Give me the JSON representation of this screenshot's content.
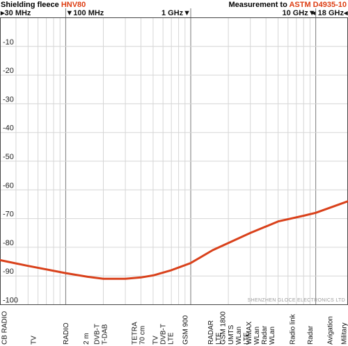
{
  "header": {
    "left_prefix": "Shielding fleece ",
    "left_accent": "HNV80",
    "right_prefix": "Measurement to ",
    "right_accent": "ASTM D4935-10"
  },
  "colors": {
    "accent": "#dd3d12",
    "curve": "#d9411b",
    "grid_minor": "#d6d6d6",
    "grid_major": "#7a7a7a",
    "axis": "#444444"
  },
  "watermark": "SHENZHEN GLOCE ELECTRONICS LTD",
  "chart_data": {
    "type": "line",
    "x_scale": "log",
    "xlim_mhz": [
      30,
      18000
    ],
    "ylim": [
      -100,
      0
    ],
    "grid": true,
    "yticks": [
      {
        "value": -10,
        "label": "-10"
      },
      {
        "value": -20,
        "label": "-20"
      },
      {
        "value": -30,
        "label": "-30"
      },
      {
        "value": -40,
        "label": "-40"
      },
      {
        "value": -50,
        "label": "-50"
      },
      {
        "value": -60,
        "label": "-60"
      },
      {
        "value": -70,
        "label": "-70"
      },
      {
        "value": -80,
        "label": "-80"
      },
      {
        "value": -90,
        "label": "-90"
      },
      {
        "value": -100,
        "label": "-100"
      }
    ],
    "freq_labels": [
      {
        "mhz": 30,
        "label": "▸30 MHz",
        "anchor": "start"
      },
      {
        "mhz": 100,
        "label": "▼100 MHz",
        "anchor": "start"
      },
      {
        "mhz": 1000,
        "label": "1 GHz▼",
        "anchor": "end"
      },
      {
        "mhz": 10000,
        "label": "10 GHz▼",
        "anchor": "end"
      },
      {
        "mhz": 18000,
        "label": "◂ 18 GHz◂",
        "anchor": "end"
      }
    ],
    "major_lines_mhz": [
      100,
      1000,
      10000
    ],
    "minor_lines_mhz": [
      40,
      50,
      60,
      70,
      80,
      90,
      200,
      300,
      400,
      500,
      600,
      700,
      800,
      900,
      2000,
      3000,
      4000,
      5000,
      6000,
      7000,
      8000,
      9000
    ],
    "series": [
      {
        "x_mhz": [
          30,
          50,
          100,
          150,
          200,
          300,
          400,
          500,
          700,
          1000,
          1500,
          2000,
          3000,
          5000,
          8000,
          10000,
          18000
        ],
        "y_db": [
          -84.5,
          -86.5,
          -89,
          -90.3,
          -91,
          -91,
          -90.5,
          -89.8,
          -88,
          -85.5,
          -81,
          -78.5,
          -75,
          -71,
          -69,
          -68,
          -64
        ]
      }
    ],
    "band_labels": [
      {
        "mhz": 30,
        "lines": [
          "CB RADIO"
        ]
      },
      {
        "mhz": 55,
        "lines": [
          "TV"
        ]
      },
      {
        "mhz": 100,
        "lines": [
          "RADIO"
        ]
      },
      {
        "mhz": 145,
        "lines": [
          "2 m"
        ]
      },
      {
        "mhz": 190,
        "lines": [
          "DVB-T",
          "T-DAB"
        ]
      },
      {
        "mhz": 380,
        "lines": [
          "TETRA",
          "70 cm"
        ]
      },
      {
        "mhz": 600,
        "lines": [
          "TV",
          "DVB-T",
          "LTE"
        ]
      },
      {
        "mhz": 900,
        "lines": [
          "GSM 900"
        ]
      },
      {
        "mhz": 1550,
        "lines": [
          "RADAR",
          "LTE"
        ]
      },
      {
        "mhz": 1800,
        "lines": [
          "GSM 1800"
        ]
      },
      {
        "mhz": 2400,
        "lines": [
          "UMTS",
          "WLan",
          "LTE"
        ]
      },
      {
        "mhz": 3600,
        "lines": [
          "WiMAX",
          "WLan",
          "Radar",
          "WLan"
        ]
      },
      {
        "mhz": 6500,
        "lines": [
          "Radio link"
        ]
      },
      {
        "mhz": 9000,
        "lines": [
          "Radar"
        ]
      },
      {
        "mhz": 13000,
        "lines": [
          "Avigation"
        ]
      },
      {
        "mhz": 17200,
        "lines": [
          "Military"
        ]
      }
    ]
  }
}
